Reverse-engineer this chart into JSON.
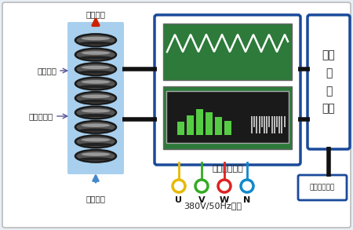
{
  "bg_color": "#e8eef5",
  "border_color": "#aaaaaa",
  "blue_border": "#1a4a9a",
  "title_hot": "热水输出",
  "title_cold": "冷水进入",
  "label_coil": "高频线圈",
  "label_insulation": "绦缘密闭层",
  "label_inverter_out": "变频功率输出",
  "label_control": "变频\n控\n制\n单元",
  "label_smart": "智能控制单元",
  "label_380v": "380V/50Hz输入",
  "uvwn": [
    "U",
    "V",
    "W",
    "N"
  ],
  "uvwn_colors": [
    "#e8b800",
    "#33aa22",
    "#dd2222",
    "#1188cc"
  ],
  "coil_bg": "#a8d0ee",
  "panel_bg": "#2d7a3a",
  "panel_border": "#1a4a9a",
  "wire_color": "#111111",
  "arrow_hot_color": "#cc2200",
  "arrow_cold_color": "#4488cc"
}
